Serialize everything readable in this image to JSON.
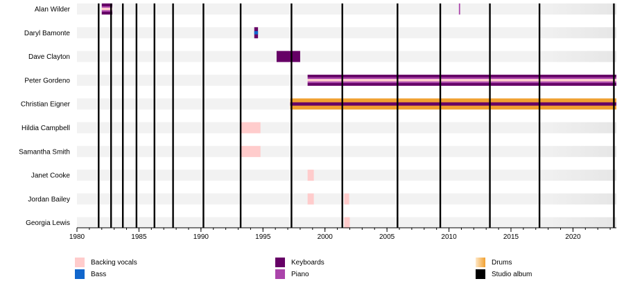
{
  "chart_data": {
    "type": "timeline",
    "title": "",
    "xlabel": "",
    "ylabel": "",
    "xlim": [
      1980,
      2023.5
    ],
    "x_ticks": [
      "1980",
      "1985",
      "1990",
      "1995",
      "2000",
      "2005",
      "2010",
      "2015",
      "2020"
    ],
    "grid": "alternating row shading",
    "legend_position": "bottom",
    "roles": [
      {
        "key": "backing_vocals",
        "name": "Backing vocals",
        "color": "#ffcccc"
      },
      {
        "key": "bass",
        "name": "Bass",
        "color": "#1166cc"
      },
      {
        "key": "keyboards",
        "name": "Keyboards",
        "color": "#660066"
      },
      {
        "key": "piano",
        "name": "Piano",
        "color": "#aa44aa"
      },
      {
        "key": "drums",
        "name": "Drums",
        "color": "#f0a030"
      },
      {
        "key": "studio_album",
        "name": "Studio album",
        "color": "#000000"
      }
    ],
    "studio_albums": [
      1981.75,
      1982.75,
      1983.7,
      1984.8,
      1986.25,
      1987.75,
      1990.2,
      1993.2,
      1997.3,
      2001.4,
      2005.85,
      2009.3,
      2013.3,
      2017.3,
      2023.3
    ],
    "members": [
      {
        "name": "Alan Wilder",
        "periods": [
          {
            "start": 1982.0,
            "end": 1982.85,
            "roles": [
              "keyboards",
              "piano",
              "backing_vocals"
            ]
          },
          {
            "start": 2010.8,
            "end": 2010.9,
            "roles": [
              "piano"
            ]
          }
        ]
      },
      {
        "name": "Daryl Bamonte",
        "periods": [
          {
            "start": 1994.3,
            "end": 1994.6,
            "roles": [
              "keyboards",
              "bass"
            ]
          }
        ]
      },
      {
        "name": "Dave Clayton",
        "periods": [
          {
            "start": 1996.1,
            "end": 1998.0,
            "roles": [
              "keyboards"
            ]
          }
        ]
      },
      {
        "name": "Peter Gordeno",
        "periods": [
          {
            "start": 1998.6,
            "end": 2023.5,
            "roles": [
              "keyboards",
              "piano",
              "backing_vocals"
            ]
          }
        ]
      },
      {
        "name": "Christian Eigner",
        "periods": [
          {
            "start": 1997.2,
            "end": 2023.5,
            "roles": [
              "drums",
              "keyboards"
            ]
          }
        ]
      },
      {
        "name": "Hildia Campbell",
        "periods": [
          {
            "start": 1993.2,
            "end": 1994.8,
            "roles": [
              "backing_vocals"
            ]
          }
        ]
      },
      {
        "name": "Samantha Smith",
        "periods": [
          {
            "start": 1993.2,
            "end": 1994.8,
            "roles": [
              "backing_vocals"
            ]
          }
        ]
      },
      {
        "name": "Janet Cooke",
        "periods": [
          {
            "start": 1998.6,
            "end": 1999.1,
            "roles": [
              "backing_vocals"
            ]
          }
        ]
      },
      {
        "name": "Jordan Bailey",
        "periods": [
          {
            "start": 1998.6,
            "end": 1999.1,
            "roles": [
              "backing_vocals"
            ]
          },
          {
            "start": 2001.55,
            "end": 2001.95,
            "roles": [
              "backing_vocals"
            ]
          }
        ]
      },
      {
        "name": "Georgia Lewis",
        "periods": [
          {
            "start": 2001.55,
            "end": 2002.0,
            "roles": [
              "backing_vocals"
            ]
          }
        ]
      }
    ]
  }
}
